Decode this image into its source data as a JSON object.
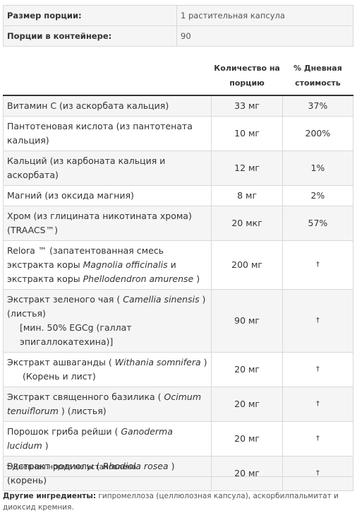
{
  "serving": {
    "size_label": "Размер порции:",
    "size_value": "1 растительная капсула",
    "per_container_label": "Порции в контейнере:",
    "per_container_value": "90"
  },
  "table": {
    "header": {
      "name": "",
      "amount_line1": "Количество на",
      "amount_line2": "порцию",
      "dv_line1": "% Дневная",
      "dv_line2": "стоимость"
    },
    "rows": [
      {
        "name": "Витамин C (из аскорбата кальция)",
        "amount": "33 мг",
        "dv": "37%"
      },
      {
        "name": "Пантотеновая кислота (из пантотената кальция)",
        "amount": "10 мг",
        "dv": "200%"
      },
      {
        "name": "Кальций (из карбоната кальция и аскорбата)",
        "amount": "12 мг",
        "dv": "1%"
      },
      {
        "name": "Магний (из оксида магния)",
        "amount": "8 мг",
        "dv": "2%"
      },
      {
        "name": "Хром (из глицината никотината хрома) (TRAACS™)",
        "amount": "20 мкг",
        "dv": "57%"
      },
      {
        "name_a": "Relora ™ (запатентованная смесь экстракта коры ",
        "name_i1": "Magnolia officinalis",
        "name_b": " и экстракта коры ",
        "name_i2": "Phellodendron amurense",
        "name_c": " )",
        "amount": "200 мг",
        "dv": "†"
      },
      {
        "name_a": "Экстракт зеленого чая ( ",
        "name_i1": "Camellia sinensis",
        "name_b": " ) (листья)",
        "sub": "[мин. 50% EGCg (галлат эпигаллокатехина)]",
        "amount": "90 мг",
        "dv": "†"
      },
      {
        "name_a": "Экстракт ашваганды ( ",
        "name_i1": "Withania somnifera",
        "name_b": " )",
        "sub": "(Корень и лист)",
        "amount": "20 мг",
        "dv": "†"
      },
      {
        "name_a": "Экстракт священного базилика ( ",
        "name_i1": "Ocimum tenuiflorum",
        "name_b": " ) (листья)",
        "amount": "20 мг",
        "dv": "†"
      },
      {
        "name_a": "Порошок гриба рейши ( ",
        "name_i1": "Ganoderma lucidum",
        "name_b": " )",
        "amount": "20 мг",
        "dv": "†"
      },
      {
        "name_a": "Экстракт родиолы ( ",
        "name_i1": "Rhodiola rosea",
        "name_b": " ) (корень)",
        "amount": "20 мг",
        "dv": "†"
      }
    ]
  },
  "footnote": "† Дневная норма не установлена.",
  "other_ingredients": {
    "label": "Другие ингредиенты:",
    "text": " гипромеллоза (целлюлозная капсула), аскорбилпальмитат и диоксид кремния."
  }
}
